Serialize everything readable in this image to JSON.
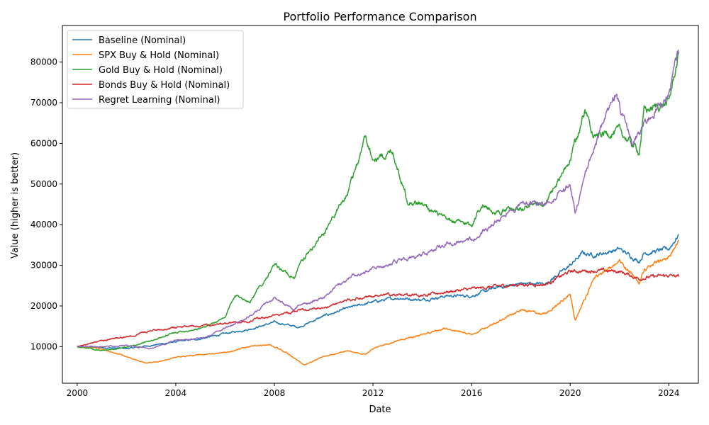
{
  "chart_data": {
    "type": "line",
    "title": "Portfolio Performance Comparison",
    "xlabel": "Date",
    "ylabel": "Value (higher is better)",
    "xlim": [
      1999.4,
      2025.2
    ],
    "ylim": [
      1000,
      89000
    ],
    "x_ticks": [
      {
        "value": 2000,
        "label": "2000"
      },
      {
        "value": 2004,
        "label": "2004"
      },
      {
        "value": 2008,
        "label": "2008"
      },
      {
        "value": 2012,
        "label": "2012"
      },
      {
        "value": 2016,
        "label": "2016"
      },
      {
        "value": 2020,
        "label": "2020"
      },
      {
        "value": 2024,
        "label": "2024"
      }
    ],
    "y_ticks": [
      {
        "value": 10000,
        "label": "10000"
      },
      {
        "value": 20000,
        "label": "20000"
      },
      {
        "value": 30000,
        "label": "30000"
      },
      {
        "value": 40000,
        "label": "40000"
      },
      {
        "value": 50000,
        "label": "50000"
      },
      {
        "value": 60000,
        "label": "60000"
      },
      {
        "value": 70000,
        "label": "70000"
      },
      {
        "value": 80000,
        "label": "80000"
      }
    ],
    "legend_position": "top-left",
    "grid": false,
    "series": [
      {
        "name": "Baseline (Nominal)",
        "color": "#1f77b4",
        "x": [
          2000,
          2001,
          2002,
          2003,
          2004,
          2005,
          2006,
          2007,
          2008,
          2008.8,
          2009,
          2010,
          2011,
          2012,
          2013,
          2014,
          2015,
          2016,
          2017,
          2018,
          2019,
          2020,
          2020.5,
          2021,
          2022,
          2022.8,
          2023,
          2024,
          2024.4
        ],
        "y": [
          10000,
          9800,
          9500,
          10300,
          11200,
          11900,
          13200,
          14300,
          16000,
          15000,
          14800,
          17500,
          19500,
          21000,
          22000,
          21500,
          22500,
          22500,
          24500,
          25500,
          25500,
          30000,
          33000,
          32500,
          34000,
          31000,
          33000,
          34000,
          37500
        ]
      },
      {
        "name": "SPX Buy & Hold (Nominal)",
        "color": "#ff7f0e",
        "x": [
          2000,
          2000.7,
          2001.5,
          2002,
          2002.8,
          2003.5,
          2004,
          2005,
          2006,
          2007,
          2007.8,
          2008.5,
          2009.2,
          2010,
          2011,
          2011.7,
          2012,
          2013,
          2014,
          2015,
          2016,
          2017,
          2018,
          2019,
          2020,
          2020.2,
          2021,
          2022,
          2022.8,
          2023,
          2024,
          2024.4
        ],
        "y": [
          10000,
          9800,
          8500,
          7500,
          6000,
          6500,
          7500,
          8000,
          8500,
          10000,
          10500,
          8500,
          5500,
          7500,
          9000,
          8000,
          9500,
          11500,
          13000,
          14500,
          13000,
          16000,
          19000,
          18000,
          23000,
          16500,
          27000,
          31000,
          26000,
          29000,
          32000,
          36000
        ]
      },
      {
        "name": "Gold Buy & Hold (Nominal)",
        "color": "#2ca02c",
        "x": [
          2000,
          2001,
          2002,
          2003,
          2004,
          2005,
          2006,
          2006.4,
          2007,
          2008,
          2008.8,
          2009,
          2010,
          2011,
          2011.7,
          2012,
          2012.8,
          2013.4,
          2014,
          2015,
          2016,
          2016.4,
          2017,
          2018,
          2019,
          2020,
          2020.6,
          2021,
          2022,
          2022.8,
          2023,
          2024,
          2024.4
        ],
        "y": [
          10000,
          9000,
          9800,
          11500,
          13500,
          14500,
          17000,
          23000,
          21000,
          30000,
          27000,
          30000,
          38000,
          48000,
          62000,
          56000,
          58000,
          46000,
          45000,
          41000,
          40000,
          45000,
          43000,
          44000,
          45000,
          56000,
          68000,
          62000,
          63000,
          58000,
          68000,
          70000,
          82000
        ]
      },
      {
        "name": "Bonds Buy & Hold (Nominal)",
        "color": "#d62728",
        "x": [
          2000,
          2001,
          2002,
          2003,
          2004,
          2005,
          2006,
          2007,
          2008,
          2009,
          2010,
          2011,
          2012,
          2013,
          2014,
          2015,
          2016,
          2017,
          2018,
          2019,
          2020,
          2021,
          2022,
          2022.8,
          2023,
          2024,
          2024.4
        ],
        "y": [
          10000,
          11500,
          12500,
          14000,
          14700,
          15200,
          15700,
          16300,
          17800,
          19000,
          19500,
          21500,
          22500,
          22700,
          22500,
          23500,
          24200,
          24800,
          25300,
          25300,
          28500,
          28700,
          28500,
          26700,
          27000,
          27500,
          27200
        ]
      },
      {
        "name": "Regret Learning (Nominal)",
        "color": "#9467bd",
        "x": [
          2000,
          2001,
          2002,
          2003,
          2004,
          2005,
          2006,
          2007,
          2008,
          2008.8,
          2009,
          2010,
          2011,
          2012,
          2013,
          2014,
          2015,
          2016,
          2017,
          2018,
          2019,
          2020,
          2020.2,
          2021,
          2021.8,
          2022.5,
          2023,
          2024,
          2024.4
        ],
        "y": [
          10000,
          10000,
          10300,
          9500,
          11500,
          12000,
          14500,
          17500,
          22000,
          19000,
          20000,
          22000,
          27000,
          29000,
          31000,
          32500,
          35500,
          36000,
          41000,
          45500,
          45000,
          50000,
          43000,
          60000,
          72000,
          60000,
          65000,
          72000,
          83000
        ]
      }
    ]
  }
}
